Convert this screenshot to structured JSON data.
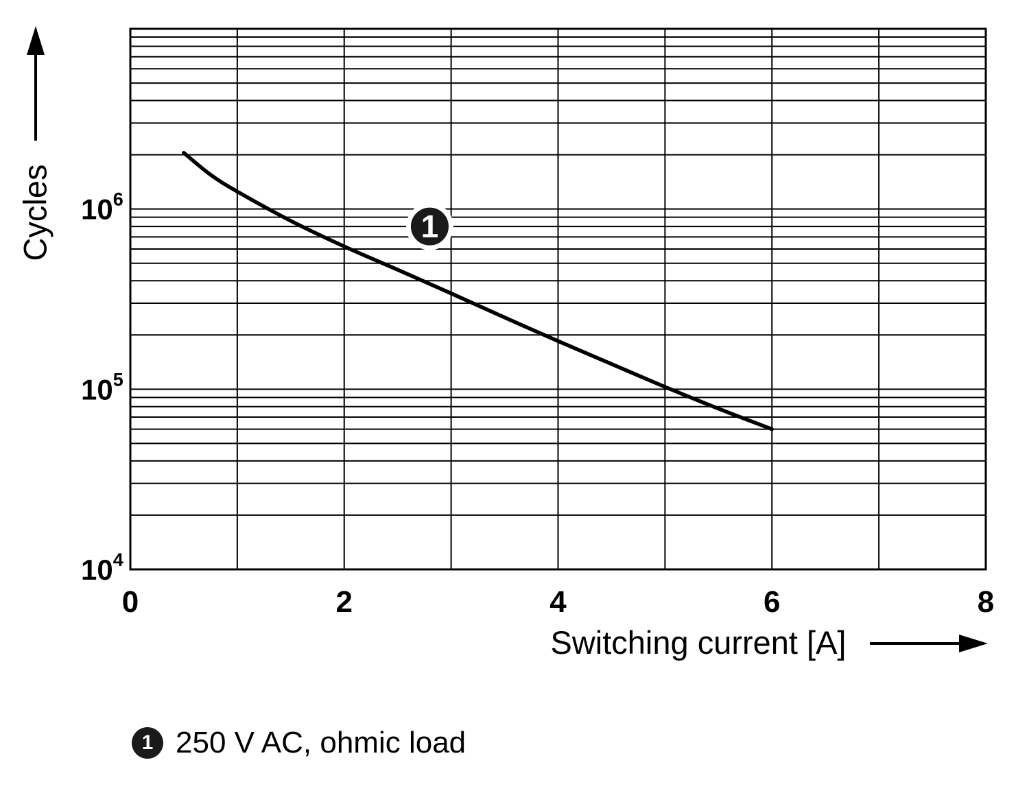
{
  "chart_data": {
    "type": "line",
    "title": "",
    "xlabel": "Switching current [A]",
    "ylabel": "Cycles",
    "x_range": [
      0,
      8
    ],
    "x_grid_step": 1,
    "y_scale": "log",
    "y_range": [
      10000,
      10000000
    ],
    "grid": "on",
    "x_ticks": [
      {
        "value": 0,
        "label": "0"
      },
      {
        "value": 2,
        "label": "2"
      },
      {
        "value": 4,
        "label": "4"
      },
      {
        "value": 6,
        "label": "6"
      },
      {
        "value": 8,
        "label": "8"
      }
    ],
    "y_ticks": [
      {
        "value": 10000,
        "base": "10",
        "exp": "4"
      },
      {
        "value": 100000,
        "base": "10",
        "exp": "5"
      },
      {
        "value": 1000000,
        "base": "10",
        "exp": "6"
      }
    ],
    "series": [
      {
        "name": "250 V AC, ohmic load",
        "marker": "1",
        "x": [
          0.5,
          0.75,
          1.0,
          1.5,
          2.0,
          2.5,
          3.0,
          3.5,
          4.0,
          4.5,
          5.0,
          5.5,
          6.0
        ],
        "cycles": [
          2050000,
          1550000,
          1250000,
          860000,
          620000,
          460000,
          340000,
          250000,
          185000,
          138000,
          103000,
          78000,
          60000
        ]
      }
    ],
    "annotation": {
      "label": "1",
      "x": 2.8,
      "y": 800000
    },
    "colors": {
      "line": "#000000",
      "grid": "#000000",
      "background": "#ffffff",
      "marker_fill": "#1a1a1a",
      "marker_text": "#ffffff"
    }
  },
  "legend": {
    "marker": "1",
    "label": "250 V AC, ohmic load"
  }
}
